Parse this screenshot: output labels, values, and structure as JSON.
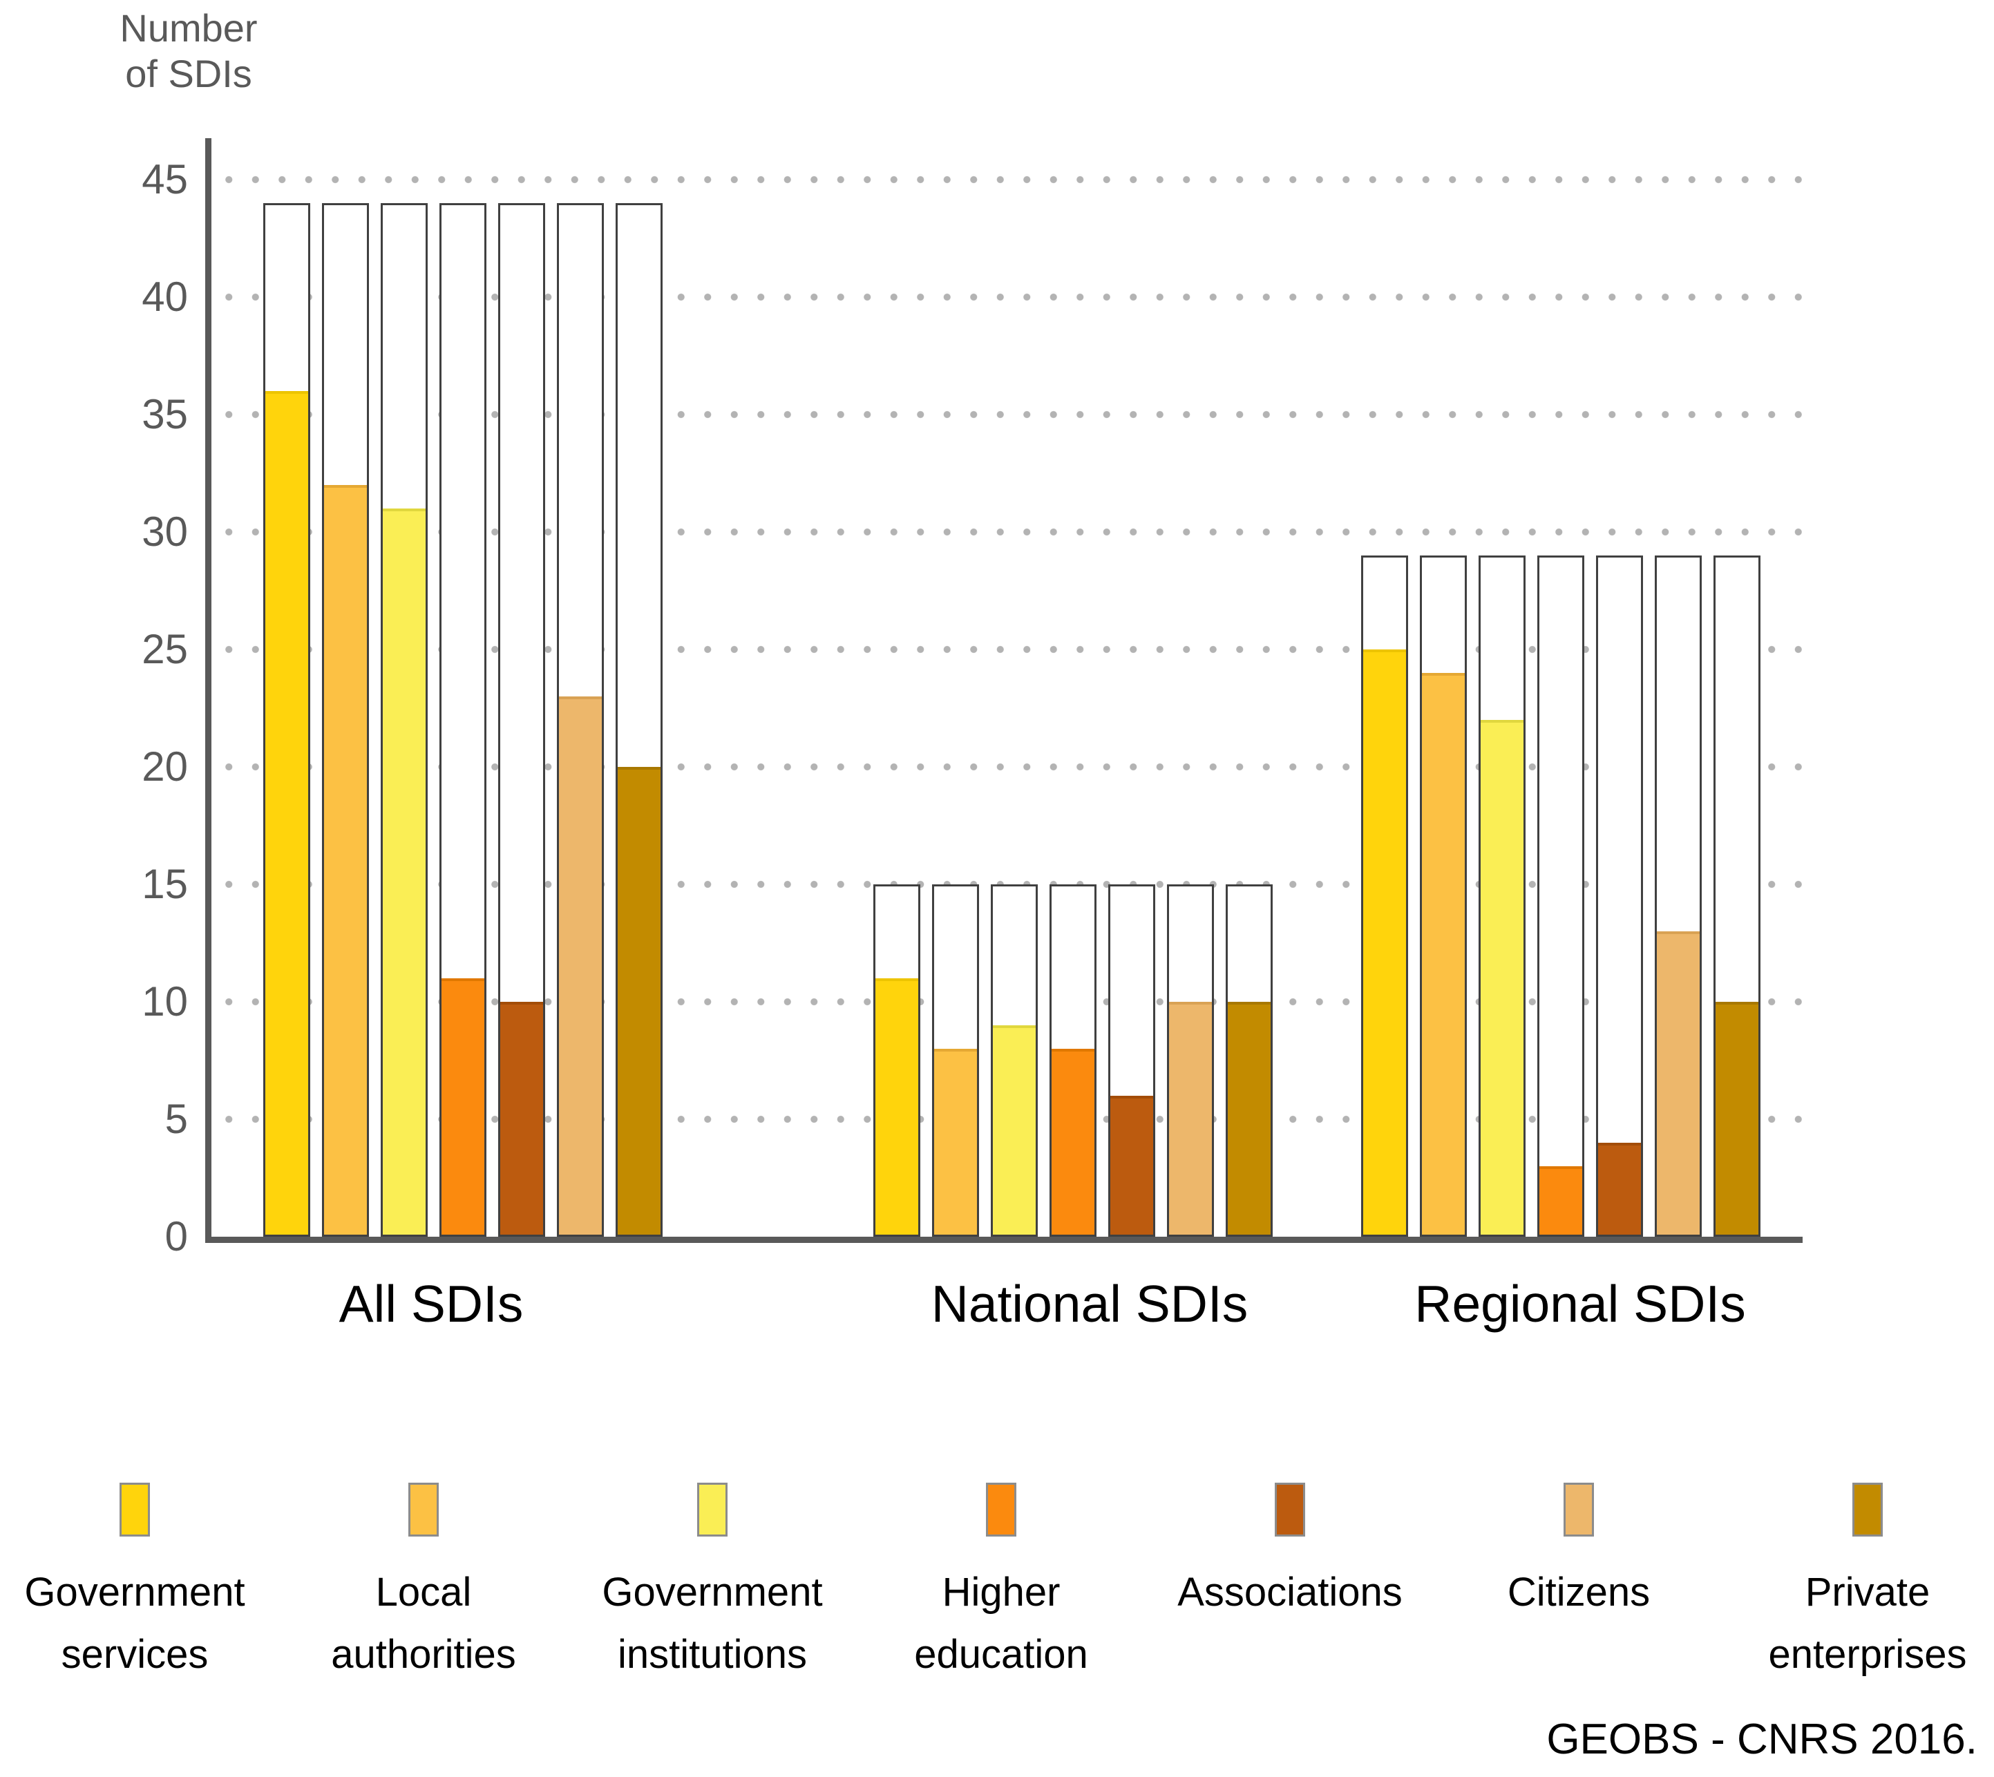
{
  "axis": {
    "title_line1": "Number",
    "title_line2": "of SDIs"
  },
  "caption": "GEOBS - CNRS 2016.",
  "chart_data": {
    "type": "bar",
    "title": "Number of SDIs",
    "ylabel": "Number of SDIs",
    "xlabel": "",
    "ylim": [
      0,
      45
    ],
    "y_ticks": [
      0,
      5,
      10,
      15,
      20,
      25,
      30,
      35,
      40,
      45
    ],
    "grid": "dotted horizontal gridlines every 5",
    "legend_position": "bottom",
    "groups": [
      "All SDIs",
      "National SDIs",
      "Regional SDIs"
    ],
    "totals": [
      44,
      15,
      29
    ],
    "totals_note": "white outline bars = total number of SDIs per group",
    "series": [
      {
        "name": "Government services",
        "legend_lines": [
          "Government",
          "services"
        ],
        "color": "#FFD40C",
        "edge": "#EDC400",
        "values": [
          36,
          11,
          25
        ]
      },
      {
        "name": "Local authorities",
        "legend_lines": [
          "Local",
          "authorities"
        ],
        "color": "#FCC144",
        "edge": "#E5A833",
        "values": [
          32,
          8,
          24
        ]
      },
      {
        "name": "Government institutions",
        "legend_lines": [
          "Government",
          "institutions"
        ],
        "color": "#FAEE55",
        "edge": "#E0D73E",
        "values": [
          31,
          9,
          22
        ]
      },
      {
        "name": "Higher education",
        "legend_lines": [
          "Higher",
          "education"
        ],
        "color": "#FB8A0E",
        "edge": "#E07800",
        "values": [
          11,
          8,
          3
        ]
      },
      {
        "name": "Associations",
        "legend_lines": [
          "Associations"
        ],
        "color": "#BC5B0F",
        "edge": "#A34D08",
        "values": [
          10,
          6,
          4
        ]
      },
      {
        "name": "Citizens",
        "legend_lines": [
          "Citizens"
        ],
        "color": "#EDB76B",
        "edge": "#D9A254",
        "values": [
          23,
          10,
          13
        ]
      },
      {
        "name": "Private enterprises",
        "legend_lines": [
          "Private",
          "enterprises"
        ],
        "color": "#C28B00",
        "edge": "#A87800",
        "values": [
          20,
          10,
          10
        ]
      }
    ],
    "source": "GEOBS - CNRS 2016."
  }
}
